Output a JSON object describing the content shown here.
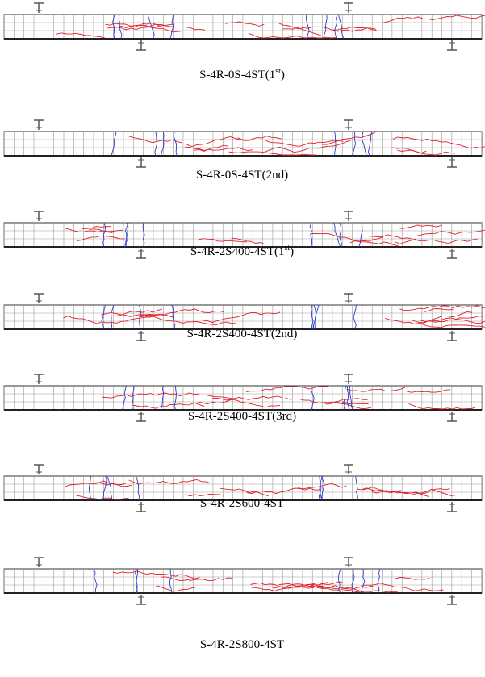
{
  "figures": [
    {
      "caption": {
        "text": "S-4R-0S-4ST(1",
        "sup": "st",
        "after": ")"
      }
    },
    {
      "caption": {
        "text": "S-4R-0S-4ST(2nd)"
      }
    },
    {
      "caption": {
        "text": "S-4R-2S400-4ST(1",
        "sup": "st",
        "after": ")"
      }
    },
    {
      "caption": {
        "text": "S-4R-2S400-4ST(2nd)"
      }
    },
    {
      "caption": {
        "text": "S-4R-2S400-4ST(3rd)"
      }
    },
    {
      "caption": {
        "text": "S-4R-2S600-4ST"
      }
    },
    {
      "caption": {
        "text": "S-4R-2S800-4ST"
      }
    }
  ]
}
